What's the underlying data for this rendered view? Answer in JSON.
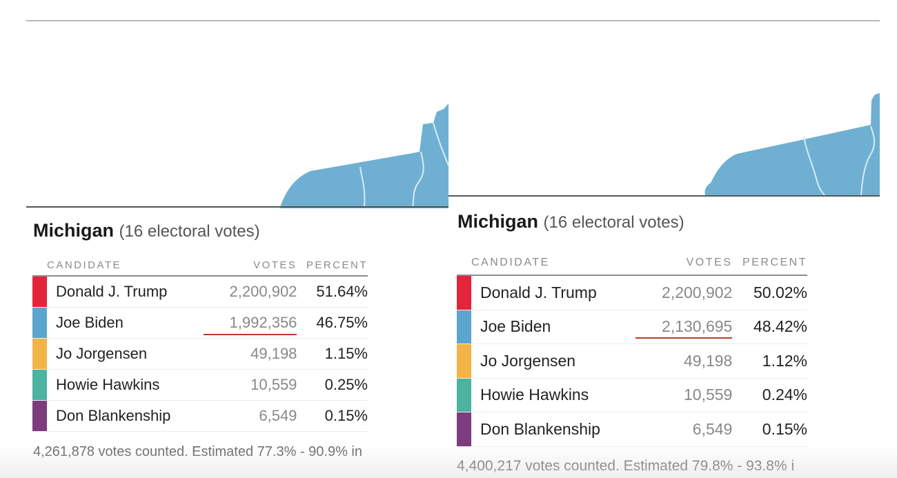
{
  "colors": {
    "map_fill": "#6fb0d2",
    "trump": "#e3243b",
    "biden": "#5aa6cf",
    "jorgensen": "#f2b447",
    "hawkins": "#4bb3a0",
    "blankenship": "#7d3c7e",
    "annotation_underline": "#c0392b"
  },
  "panels": [
    {
      "state": "Michigan",
      "electoral": "(16 electoral votes)",
      "headers": {
        "candidate": "CANDIDATE",
        "votes": "VOTES",
        "percent": "PERCENT"
      },
      "rows": [
        {
          "candidate": "Donald J. Trump",
          "votes": "2,200,902",
          "percent": "51.64%",
          "color_key": "trump"
        },
        {
          "candidate": "Joe Biden",
          "votes": "1,992,356",
          "percent": "46.75%",
          "color_key": "biden",
          "underlined": true
        },
        {
          "candidate": "Jo Jorgensen",
          "votes": "49,198",
          "percent": "1.15%",
          "color_key": "jorgensen"
        },
        {
          "candidate": "Howie Hawkins",
          "votes": "10,559",
          "percent": "0.25%",
          "color_key": "hawkins"
        },
        {
          "candidate": "Don Blankenship",
          "votes": "6,549",
          "percent": "0.15%",
          "color_key": "blankenship"
        }
      ],
      "status": "4,261,878 votes counted. Estimated 77.3% - 90.9% in"
    },
    {
      "state": "Michigan",
      "electoral": "(16 electoral votes)",
      "headers": {
        "candidate": "CANDIDATE",
        "votes": "VOTES",
        "percent": "PERCENT"
      },
      "rows": [
        {
          "candidate": "Donald J. Trump",
          "votes": "2,200,902",
          "percent": "50.02%",
          "color_key": "trump"
        },
        {
          "candidate": "Joe Biden",
          "votes": "2,130,695",
          "percent": "48.42%",
          "color_key": "biden",
          "underlined": true
        },
        {
          "candidate": "Jo Jorgensen",
          "votes": "49,198",
          "percent": "1.12%",
          "color_key": "jorgensen"
        },
        {
          "candidate": "Howie Hawkins",
          "votes": "10,559",
          "percent": "0.24%",
          "color_key": "hawkins"
        },
        {
          "candidate": "Don Blankenship",
          "votes": "6,549",
          "percent": "0.15%",
          "color_key": "blankenship"
        }
      ],
      "status": "4,400,217 votes counted. Estimated 79.8% - 93.8% i"
    }
  ]
}
